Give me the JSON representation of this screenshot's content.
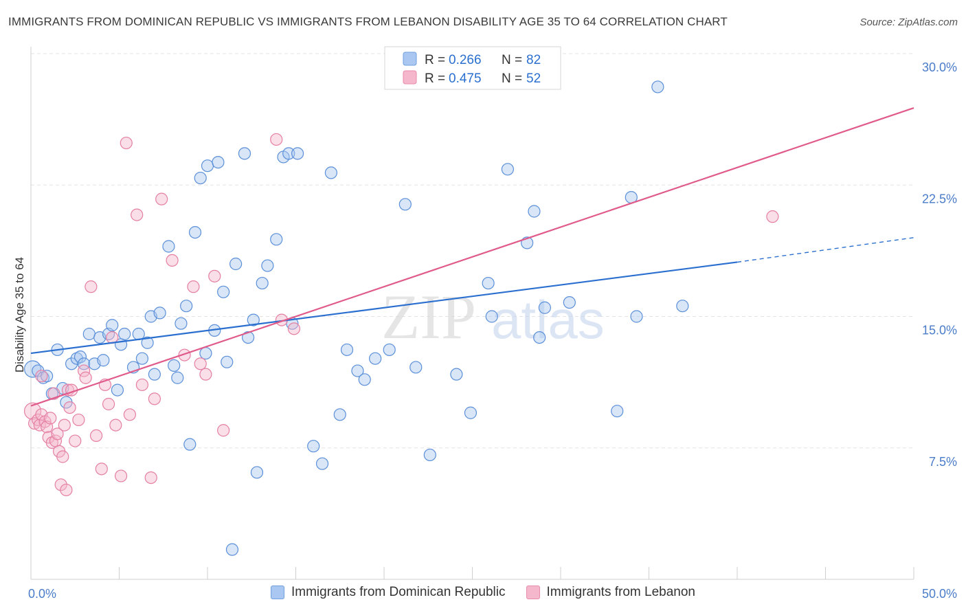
{
  "title": "IMMIGRANTS FROM DOMINICAN REPUBLIC VS IMMIGRANTS FROM LEBANON DISABILITY AGE 35 TO 64 CORRELATION CHART",
  "source": "Source: ZipAtlas.com",
  "watermark": {
    "zip": "ZIP",
    "atlas": "atlas"
  },
  "legend": {
    "rows": [
      {
        "r_label": "R =",
        "r_value": "0.266",
        "n_label": "N =",
        "n_value": "82"
      },
      {
        "r_label": "R =",
        "r_value": "0.475",
        "n_label": "N =",
        "n_value": "52"
      }
    ]
  },
  "chart_data": {
    "type": "scatter",
    "ylabel": "Disability Age 35 to 64",
    "xlim": [
      0,
      50
    ],
    "ylim": [
      0,
      30
    ],
    "x_tick_labels": [
      "0.0%",
      "50.0%"
    ],
    "y_tick_labels": [
      "7.5%",
      "15.0%",
      "22.5%",
      "30.0%"
    ],
    "y_tick_values": [
      7.5,
      15,
      22.5,
      30
    ],
    "colors": {
      "blue": "#2a6fcf",
      "pink": "#e05a8a",
      "blue_fill": "#a9c7f0",
      "pink_fill": "#f5b7cb"
    },
    "series": [
      {
        "name": "Immigrants from Dominican Republic",
        "color": "#2a6fcf",
        "trend": {
          "x0": 0,
          "y0": 12.9,
          "x1": 40,
          "y1": 18.1,
          "dash_to_x": 50,
          "dash_to_y": 19.5
        },
        "points": [
          [
            0.1,
            12.0
          ],
          [
            0.4,
            11.9
          ],
          [
            0.7,
            11.5
          ],
          [
            0.9,
            11.6
          ],
          [
            1.2,
            10.6
          ],
          [
            1.5,
            13.1
          ],
          [
            1.8,
            10.9
          ],
          [
            2.0,
            10.1
          ],
          [
            2.3,
            12.3
          ],
          [
            2.6,
            12.6
          ],
          [
            2.8,
            12.7
          ],
          [
            3.0,
            12.3
          ],
          [
            3.3,
            14.0
          ],
          [
            3.6,
            12.3
          ],
          [
            3.9,
            13.8
          ],
          [
            4.1,
            12.5
          ],
          [
            4.4,
            14.0
          ],
          [
            4.6,
            14.5
          ],
          [
            4.9,
            10.8
          ],
          [
            5.1,
            13.4
          ],
          [
            5.3,
            14.0
          ],
          [
            5.8,
            12.1
          ],
          [
            6.1,
            14.0
          ],
          [
            6.3,
            12.6
          ],
          [
            6.6,
            13.5
          ],
          [
            6.8,
            15.0
          ],
          [
            7.0,
            11.7
          ],
          [
            7.3,
            15.2
          ],
          [
            7.8,
            19.0
          ],
          [
            8.1,
            12.2
          ],
          [
            8.3,
            11.5
          ],
          [
            8.5,
            14.6
          ],
          [
            8.8,
            15.6
          ],
          [
            9.0,
            7.7
          ],
          [
            9.3,
            19.8
          ],
          [
            9.6,
            22.9
          ],
          [
            9.9,
            12.9
          ],
          [
            10.0,
            23.6
          ],
          [
            10.4,
            14.2
          ],
          [
            10.6,
            23.8
          ],
          [
            10.9,
            16.4
          ],
          [
            11.1,
            12.4
          ],
          [
            11.4,
            1.7
          ],
          [
            11.6,
            18.0
          ],
          [
            12.1,
            24.3
          ],
          [
            12.3,
            13.8
          ],
          [
            12.6,
            14.8
          ],
          [
            12.8,
            6.1
          ],
          [
            13.1,
            16.9
          ],
          [
            13.4,
            17.9
          ],
          [
            13.9,
            19.4
          ],
          [
            14.3,
            24.1
          ],
          [
            14.6,
            24.3
          ],
          [
            14.8,
            14.6
          ],
          [
            15.1,
            24.3
          ],
          [
            16.0,
            7.6
          ],
          [
            16.5,
            6.6
          ],
          [
            17.0,
            23.2
          ],
          [
            17.5,
            9.4
          ],
          [
            17.9,
            13.1
          ],
          [
            18.5,
            11.9
          ],
          [
            18.9,
            11.4
          ],
          [
            19.5,
            12.6
          ],
          [
            20.3,
            13.1
          ],
          [
            21.2,
            21.4
          ],
          [
            21.8,
            12.1
          ],
          [
            22.6,
            7.1
          ],
          [
            24.1,
            11.7
          ],
          [
            24.9,
            9.5
          ],
          [
            25.9,
            16.9
          ],
          [
            26.1,
            15.0
          ],
          [
            27.0,
            23.4
          ],
          [
            28.1,
            19.2
          ],
          [
            28.5,
            21.0
          ],
          [
            28.8,
            13.8
          ],
          [
            29.1,
            15.5
          ],
          [
            30.5,
            15.8
          ],
          [
            33.2,
            9.6
          ],
          [
            34.0,
            21.8
          ],
          [
            34.3,
            15.0
          ],
          [
            35.5,
            28.1
          ],
          [
            36.9,
            15.6
          ]
        ]
      },
      {
        "name": "Immigrants from Lebanon",
        "color": "#e05a8a",
        "trend": {
          "x0": 0,
          "y0": 9.9,
          "x1": 50,
          "y1": 26.9
        },
        "points": [
          [
            0.1,
            9.6
          ],
          [
            0.2,
            8.9
          ],
          [
            0.4,
            9.1
          ],
          [
            0.5,
            8.8
          ],
          [
            0.6,
            9.4
          ],
          [
            0.8,
            9.0
          ],
          [
            0.9,
            8.7
          ],
          [
            1.0,
            8.1
          ],
          [
            1.1,
            9.2
          ],
          [
            1.2,
            7.8
          ],
          [
            1.3,
            10.6
          ],
          [
            1.4,
            7.9
          ],
          [
            1.5,
            8.3
          ],
          [
            1.6,
            7.3
          ],
          [
            1.7,
            5.4
          ],
          [
            1.8,
            7.0
          ],
          [
            1.9,
            8.8
          ],
          [
            2.0,
            5.1
          ],
          [
            2.1,
            10.8
          ],
          [
            2.2,
            9.8
          ],
          [
            2.3,
            10.8
          ],
          [
            2.5,
            7.9
          ],
          [
            2.7,
            9.1
          ],
          [
            3.0,
            11.9
          ],
          [
            3.1,
            11.5
          ],
          [
            3.4,
            16.7
          ],
          [
            3.7,
            8.2
          ],
          [
            4.0,
            6.3
          ],
          [
            4.2,
            11.1
          ],
          [
            4.4,
            10.0
          ],
          [
            4.6,
            13.8
          ],
          [
            4.8,
            8.8
          ],
          [
            5.1,
            5.9
          ],
          [
            5.4,
            24.9
          ],
          [
            5.6,
            9.4
          ],
          [
            6.0,
            20.8
          ],
          [
            6.3,
            11.1
          ],
          [
            6.8,
            5.8
          ],
          [
            7.0,
            10.3
          ],
          [
            7.4,
            21.7
          ],
          [
            8.0,
            18.2
          ],
          [
            8.7,
            12.8
          ],
          [
            9.2,
            16.7
          ],
          [
            9.6,
            12.3
          ],
          [
            9.9,
            11.7
          ],
          [
            10.4,
            17.3
          ],
          [
            10.9,
            8.5
          ],
          [
            13.9,
            25.1
          ],
          [
            14.2,
            14.8
          ],
          [
            14.9,
            14.3
          ],
          [
            0.6,
            11.6
          ],
          [
            42.0,
            20.7
          ]
        ]
      }
    ]
  }
}
